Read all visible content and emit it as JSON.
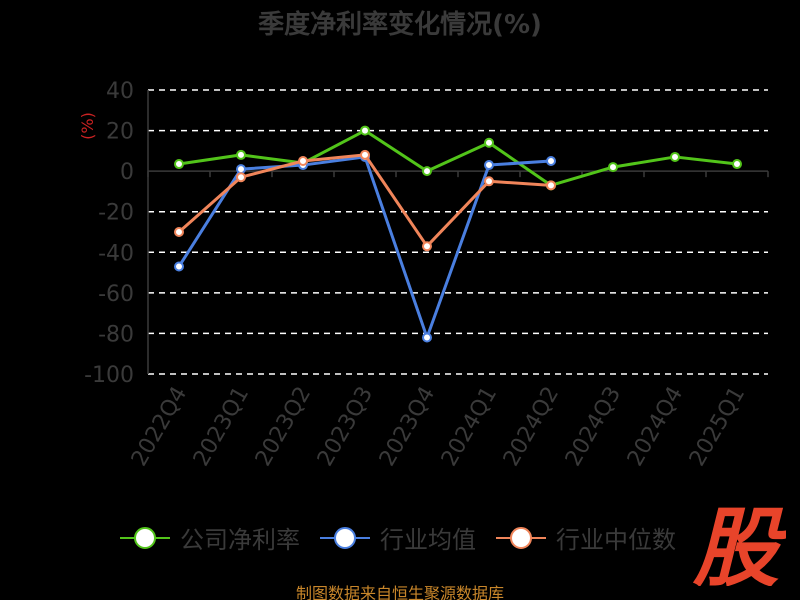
{
  "chart_data": {
    "type": "line",
    "title": "季度净利率变化情况(%)",
    "ylabel": "(%)",
    "xlabel": "",
    "ylim": [
      -100,
      40
    ],
    "yticks": [
      40,
      20,
      0,
      -20,
      -40,
      -60,
      -80,
      -100
    ],
    "grid": true,
    "legend_position": "bottom",
    "categories": [
      "2022Q4",
      "2023Q1",
      "2023Q2",
      "2023Q3",
      "2023Q4",
      "2024Q1",
      "2024Q2",
      "2024Q3",
      "2024Q4",
      "2025Q1"
    ],
    "series": [
      {
        "name": "公司净利率",
        "color": "#52c41a",
        "values": [
          3.5,
          8,
          4,
          20,
          0,
          14,
          -7,
          2,
          7,
          3.5
        ]
      },
      {
        "name": "行业均值",
        "color": "#4a7fe0",
        "values": [
          -47,
          1,
          3,
          7,
          -82,
          3,
          5,
          null,
          null,
          null
        ]
      },
      {
        "name": "行业中位数",
        "color": "#f0855a",
        "values": [
          -30,
          -3,
          5,
          8,
          -37,
          -5,
          -7,
          null,
          null,
          null
        ]
      }
    ]
  },
  "footer": {
    "source": "制图数据来自恒生聚源数据库"
  },
  "watermark": {
    "text": "股",
    "color": "#e8442a"
  }
}
